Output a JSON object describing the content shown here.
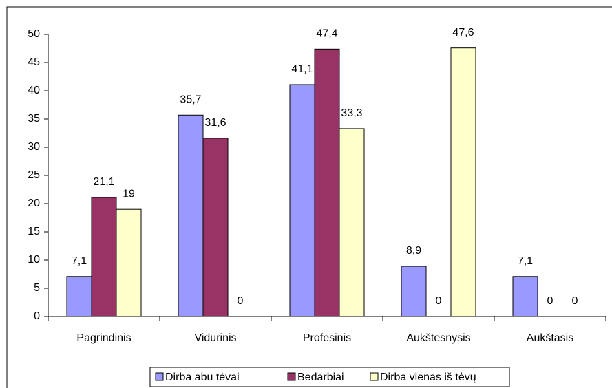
{
  "chart_data": {
    "type": "bar",
    "categories": [
      "Pagrindinis",
      "Vidurinis",
      "Profesinis",
      "Aukštesnysis",
      "Aukštasis"
    ],
    "series": [
      {
        "name": "Dirba abu tėvai",
        "color": "#9999ff",
        "values": [
          7.1,
          35.7,
          41.1,
          8.9,
          7.1
        ],
        "value_labels": [
          "7,1",
          "35,7",
          "41,1",
          "8,9",
          "7,1"
        ]
      },
      {
        "name": "Bedarbiai",
        "color": "#993366",
        "values": [
          21.1,
          31.6,
          47.4,
          0,
          0
        ],
        "value_labels": [
          "21,1",
          "31,6",
          "47,4",
          "0",
          "0"
        ]
      },
      {
        "name": "Dirba vienas iš tėvų",
        "color": "#ffffcc",
        "values": [
          19,
          0,
          33.3,
          47.6,
          0
        ],
        "value_labels": [
          "19",
          "0",
          "33,3",
          "47,6",
          "0"
        ]
      }
    ],
    "ylim": [
      0,
      50
    ],
    "yticks": [
      0,
      5,
      10,
      15,
      20,
      25,
      30,
      35,
      40,
      45,
      50
    ],
    "grid": false,
    "legend": "bottom"
  }
}
